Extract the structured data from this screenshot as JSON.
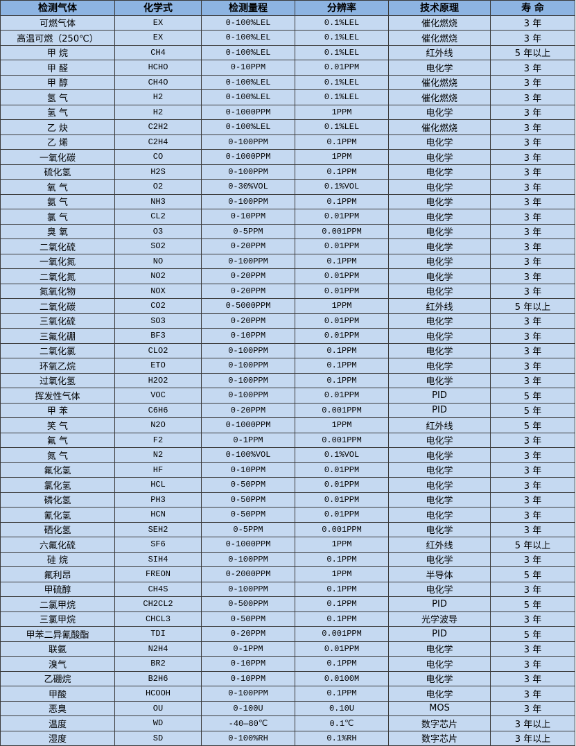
{
  "headers": [
    "检测气体",
    "化学式",
    "检测量程",
    "分辨率",
    "技术原理",
    "寿 命"
  ],
  "colors": {
    "header_bg": "#8db4e2",
    "row_bg": "#c5d9f1",
    "border": "#3a3a3a"
  },
  "rows": [
    [
      "可燃气体",
      "EX",
      "0-100%LEL",
      "0.1%LEL",
      "催化燃烧",
      "3 年"
    ],
    [
      "高温可燃（250℃）",
      "EX",
      "0-100%LEL",
      "0.1%LEL",
      "催化燃烧",
      "3 年"
    ],
    [
      "甲 烷",
      "CH4",
      "0-100%LEL",
      "0.1%LEL",
      "红外线",
      "5 年以上"
    ],
    [
      "甲 醛",
      "HCHO",
      "0-10PPM",
      "0.01PPM",
      "电化学",
      "3 年"
    ],
    [
      "甲 醇",
      "CH4O",
      "0-100%LEL",
      "0.1%LEL",
      "催化燃烧",
      "3 年"
    ],
    [
      "氢 气",
      "H2",
      "0-100%LEL",
      "0.1%LEL",
      "催化燃烧",
      "3 年"
    ],
    [
      "氢 气",
      "H2",
      "0-1000PPM",
      "1PPM",
      "电化学",
      "3 年"
    ],
    [
      "乙 炔",
      "C2H2",
      "0-100%LEL",
      "0.1%LEL",
      "催化燃烧",
      "3 年"
    ],
    [
      "乙 烯",
      "C2H4",
      "0-100PPM",
      "0.1PPM",
      "电化学",
      "3 年"
    ],
    [
      "一氧化碳",
      "CO",
      "0-1000PPM",
      "1PPM",
      "电化学",
      "3 年"
    ],
    [
      "硫化氢",
      "H2S",
      "0-100PPM",
      "0.1PPM",
      "电化学",
      "3 年"
    ],
    [
      "氧 气",
      "O2",
      "0-30%VOL",
      "0.1%VOL",
      "电化学",
      "3 年"
    ],
    [
      "氨 气",
      "NH3",
      "0-100PPM",
      "0.1PPM",
      "电化学",
      "3 年"
    ],
    [
      "氯 气",
      "CL2",
      "0-10PPM",
      "0.01PPM",
      "电化学",
      "3 年"
    ],
    [
      "臭 氧",
      "O3",
      "0-5PPM",
      "0.001PPM",
      "电化学",
      "3 年"
    ],
    [
      "二氧化硫",
      "SO2",
      "0-20PPM",
      "0.01PPM",
      "电化学",
      "3 年"
    ],
    [
      "一氧化氮",
      "NO",
      "0-100PPM",
      "0.1PPM",
      "电化学",
      "3 年"
    ],
    [
      "二氧化氮",
      "NO2",
      "0-20PPM",
      "0.01PPM",
      "电化学",
      "3 年"
    ],
    [
      "氮氧化物",
      "NOX",
      "0-20PPM",
      "0.01PPM",
      "电化学",
      "3 年"
    ],
    [
      "二氧化碳",
      "CO2",
      "0-5000PPM",
      "1PPM",
      "红外线",
      "5 年以上"
    ],
    [
      "三氧化硫",
      "SO3",
      "0-20PPM",
      "0.01PPM",
      "电化学",
      "3 年"
    ],
    [
      "三氟化硼",
      "BF3",
      "0-10PPM",
      "0.01PPM",
      "电化学",
      "3 年"
    ],
    [
      "二氧化氯",
      "CLO2",
      "0-100PPM",
      "0.1PPM",
      "电化学",
      "3 年"
    ],
    [
      "环氧乙烷",
      "ETO",
      "0-100PPM",
      "0.1PPM",
      "电化学",
      "3 年"
    ],
    [
      "过氧化氢",
      "H2O2",
      "0-100PPM",
      "0.1PPM",
      "电化学",
      "3 年"
    ],
    [
      "挥发性气体",
      "VOC",
      "0-100PPM",
      "0.01PPM",
      "PID",
      "5 年"
    ],
    [
      "甲 苯",
      "C6H6",
      "0-20PPM",
      "0.001PPM",
      "PID",
      "5 年"
    ],
    [
      "笑 气",
      "N2O",
      "0-1000PPM",
      "1PPM",
      "红外线",
      "5 年"
    ],
    [
      "氟 气",
      "F2",
      "0-1PPM",
      "0.001PPM",
      "电化学",
      "3 年"
    ],
    [
      "氮 气",
      "N2",
      "0-100%VOL",
      "0.1%VOL",
      "电化学",
      "3 年"
    ],
    [
      "氟化氢",
      "HF",
      "0-10PPM",
      "0.01PPM",
      "电化学",
      "3 年"
    ],
    [
      "氯化氢",
      "HCL",
      "0-50PPM",
      "0.01PPM",
      "电化学",
      "3 年"
    ],
    [
      "磷化氢",
      "PH3",
      "0-50PPM",
      "0.01PPM",
      "电化学",
      "3 年"
    ],
    [
      "氰化氢",
      "HCN",
      "0-50PPM",
      "0.01PPM",
      "电化学",
      "3 年"
    ],
    [
      "硒化氢",
      "SEH2",
      "0-5PPM",
      "0.001PPM",
      "电化学",
      "3 年"
    ],
    [
      "六氟化硫",
      "SF6",
      "0-1000PPM",
      "1PPM",
      "红外线",
      "5 年以上"
    ],
    [
      "硅 烷",
      "SIH4",
      "0-100PPM",
      "0.1PPM",
      "电化学",
      "3 年"
    ],
    [
      "氟利昂",
      "FREON",
      "0-2000PPM",
      "1PPM",
      "半导体",
      "5 年"
    ],
    [
      "甲硫醇",
      "CH4S",
      "0-100PPM",
      "0.1PPM",
      "电化学",
      "3 年"
    ],
    [
      "二氯甲烷",
      "CH2CL2",
      "0-500PPM",
      "0.1PPM",
      "PID",
      "5 年"
    ],
    [
      "三氯甲烷",
      "CHCL3",
      "0-50PPM",
      "0.1PPM",
      "光学波导",
      "3 年"
    ],
    [
      "甲苯二异氰酸酯",
      "TDI",
      "0-20PPM",
      "0.001PPM",
      "PID",
      "5 年"
    ],
    [
      "联氨",
      "N2H4",
      "0-1PPM",
      "0.01PPM",
      "电化学",
      "3 年"
    ],
    [
      "溴气",
      "BR2",
      "0-10PPM",
      "0.1PPM",
      "电化学",
      "3 年"
    ],
    [
      "乙硼烷",
      "B2H6",
      "0-10PPM",
      "0.0100M",
      "电化学",
      "3 年"
    ],
    [
      "甲酸",
      "HCOOH",
      "0-100PPM",
      "0.1PPM",
      "电化学",
      "3 年"
    ],
    [
      "恶臭",
      "OU",
      "0-100U",
      "0.10U",
      "MOS",
      "3 年"
    ],
    [
      "温度",
      "WD",
      "-40—80℃",
      "0.1℃",
      "数字芯片",
      "3 年以上"
    ],
    [
      "湿度",
      "SD",
      "0-100%RH",
      "0.1%RH",
      "数字芯片",
      "3 年以上"
    ]
  ]
}
